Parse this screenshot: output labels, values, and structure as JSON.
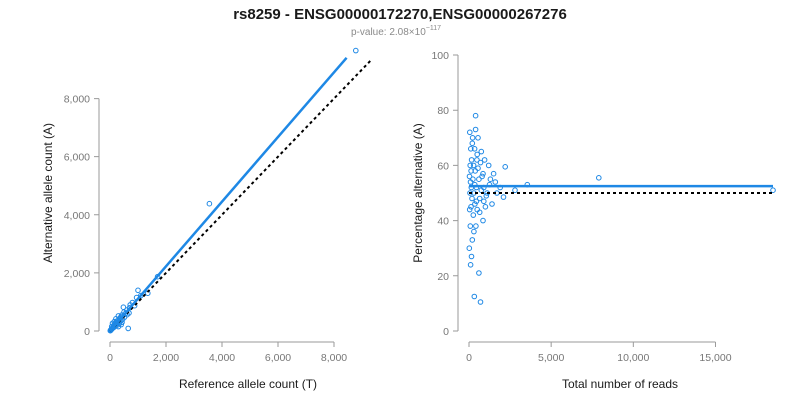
{
  "title": "rs8259 - ENSG00000172270,ENSG00000267276",
  "pvalue_prefix": "p-value: 2.08×10",
  "pvalue_exp": "−117",
  "colors": {
    "points": "#1e88e5",
    "reference": "#000000",
    "axis": "#9a9a9a"
  },
  "chart_data": [
    {
      "type": "scatter",
      "name": "left",
      "xlabel": "Reference allele count (T)",
      "ylabel": "Alternative allele count (A)",
      "xlim": [
        0,
        8500
      ],
      "ylim": [
        0,
        9500
      ],
      "xticks": [
        0,
        2000,
        4000,
        6000,
        8000
      ],
      "xtick_labels": [
        "0",
        "2,000",
        "4,000",
        "6,000",
        "8,000"
      ],
      "yticks": [
        0,
        2000,
        4000,
        6000,
        8000
      ],
      "ytick_labels": [
        "0",
        "2,000",
        "4,000",
        "6,000",
        "8,000"
      ],
      "fit_line": {
        "slope": 1.113,
        "intercept": 0,
        "x_range": [
          0,
          8450
        ]
      },
      "reference_line": {
        "slope": 1.0,
        "intercept": 0,
        "x_range": [
          0,
          9300
        ]
      },
      "points": [
        [
          8780,
          9650
        ],
        [
          3550,
          4380
        ],
        [
          1700,
          1870
        ],
        [
          1350,
          1300
        ],
        [
          1100,
          1220
        ],
        [
          950,
          1150
        ],
        [
          1000,
          1400
        ],
        [
          800,
          980
        ],
        [
          700,
          800
        ],
        [
          650,
          90
        ],
        [
          600,
          720
        ],
        [
          550,
          600
        ],
        [
          500,
          650
        ],
        [
          480,
          820
        ],
        [
          450,
          400
        ],
        [
          420,
          550
        ],
        [
          400,
          500
        ],
        [
          380,
          350
        ],
        [
          350,
          420
        ],
        [
          320,
          380
        ],
        [
          300,
          520
        ],
        [
          280,
          300
        ],
        [
          260,
          350
        ],
        [
          240,
          260
        ],
        [
          220,
          300
        ],
        [
          200,
          250
        ],
        [
          190,
          180
        ],
        [
          180,
          210
        ],
        [
          170,
          240
        ],
        [
          160,
          150
        ],
        [
          150,
          180
        ],
        [
          140,
          160
        ],
        [
          130,
          120
        ],
        [
          120,
          150
        ],
        [
          110,
          130
        ],
        [
          100,
          110
        ],
        [
          90,
          100
        ],
        [
          80,
          90
        ],
        [
          70,
          80
        ],
        [
          60,
          70
        ],
        [
          50,
          55
        ],
        [
          40,
          45
        ],
        [
          30,
          35
        ],
        [
          20,
          25
        ],
        [
          10,
          12
        ],
        [
          250,
          200
        ],
        [
          330,
          250
        ],
        [
          370,
          460
        ],
        [
          430,
          300
        ],
        [
          520,
          480
        ],
        [
          610,
          560
        ],
        [
          680,
          620
        ],
        [
          720,
          900
        ],
        [
          880,
          870
        ],
        [
          150,
          320
        ],
        [
          210,
          420
        ],
        [
          90,
          260
        ],
        [
          60,
          150
        ],
        [
          300,
          150
        ],
        [
          400,
          220
        ]
      ]
    },
    {
      "type": "scatter",
      "name": "right",
      "xlabel": "Total number of reads",
      "ylabel": "Percentage alternative (A)",
      "xlim": [
        0,
        18500
      ],
      "ylim": [
        0,
        100
      ],
      "xticks": [
        0,
        5000,
        10000,
        15000
      ],
      "xtick_labels": [
        "0",
        "5,000",
        "10,000",
        "15,000"
      ],
      "yticks": [
        0,
        20,
        40,
        60,
        80,
        100
      ],
      "ytick_labels": [
        "0",
        "20",
        "40",
        "60",
        "80",
        "100"
      ],
      "fit_line": {
        "y": 52.5,
        "x_range": [
          0,
          18500
        ]
      },
      "reference_line": {
        "y": 50,
        "x_range": [
          0,
          18500
        ]
      },
      "points": [
        [
          18500,
          51
        ],
        [
          7900,
          55.5
        ],
        [
          3550,
          53
        ],
        [
          2800,
          51
        ],
        [
          2200,
          59.5
        ],
        [
          2100,
          48.5
        ],
        [
          1900,
          52
        ],
        [
          1700,
          50
        ],
        [
          1600,
          54
        ],
        [
          1500,
          57
        ],
        [
          1400,
          46
        ],
        [
          1300,
          55
        ],
        [
          1200,
          60
        ],
        [
          1100,
          50
        ],
        [
          1000,
          45
        ],
        [
          950,
          62
        ],
        [
          900,
          52
        ],
        [
          850,
          40
        ],
        [
          800,
          56
        ],
        [
          750,
          65
        ],
        [
          700,
          10.5
        ],
        [
          650,
          48
        ],
        [
          600,
          55
        ],
        [
          550,
          70
        ],
        [
          500,
          44
        ],
        [
          480,
          62
        ],
        [
          450,
          52
        ],
        [
          420,
          38
        ],
        [
          400,
          78
        ],
        [
          380,
          58
        ],
        [
          360,
          46
        ],
        [
          340,
          66
        ],
        [
          320,
          12.5
        ],
        [
          300,
          50
        ],
        [
          280,
          60
        ],
        [
          260,
          42
        ],
        [
          240,
          55
        ],
        [
          220,
          70
        ],
        [
          200,
          33
        ],
        [
          180,
          48
        ],
        [
          160,
          62
        ],
        [
          150,
          27
        ],
        [
          140,
          52
        ],
        [
          130,
          58
        ],
        [
          120,
          45
        ],
        [
          110,
          66
        ],
        [
          100,
          24
        ],
        [
          90,
          54
        ],
        [
          80,
          38
        ],
        [
          70,
          60
        ],
        [
          60,
          50
        ],
        [
          50,
          72
        ],
        [
          40,
          44
        ],
        [
          30,
          56
        ],
        [
          20,
          30
        ],
        [
          350,
          53
        ],
        [
          450,
          47
        ],
        [
          550,
          59
        ],
        [
          650,
          43
        ],
        [
          750,
          51
        ],
        [
          850,
          57
        ],
        [
          1050,
          49
        ],
        [
          1250,
          53
        ],
        [
          600,
          21
        ],
        [
          300,
          36
        ],
        [
          200,
          68
        ],
        [
          400,
          73
        ],
        [
          500,
          64
        ],
        [
          700,
          61
        ],
        [
          900,
          47
        ]
      ]
    }
  ]
}
